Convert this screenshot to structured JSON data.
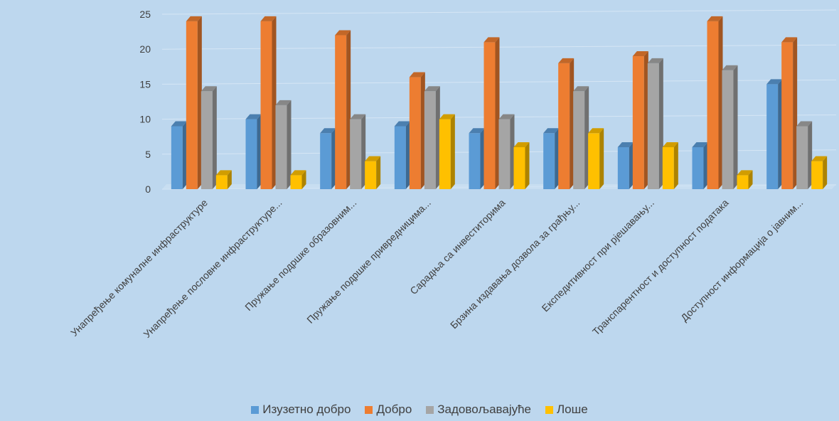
{
  "chart_data": {
    "type": "bar",
    "title": "",
    "xlabel": "",
    "ylabel": "",
    "ylim": [
      0,
      25
    ],
    "yticks": [
      0,
      5,
      10,
      15,
      20,
      25
    ],
    "grid": true,
    "legend_position": "bottom",
    "categories": [
      "Унапређење комуналне инфраструктуре",
      "Унапређење пословне инфраструктуре...",
      "Пружање подршке образовним...",
      "Пружање подршке привредницима...",
      "Сарадња са инвеститорима",
      "Брзина издавања дозвола за грађњу...",
      "Експедитивност при рјешавању...",
      "Транспарентност и доступност података",
      "Доступност информација о јавним..."
    ],
    "series": [
      {
        "name": "Изузетно добро",
        "color": "#5b9bd5",
        "values": [
          9,
          10,
          8,
          9,
          8,
          8,
          6,
          6,
          15
        ]
      },
      {
        "name": "Добро",
        "color": "#ed7d31",
        "values": [
          24,
          24,
          22,
          16,
          21,
          18,
          19,
          24,
          21
        ]
      },
      {
        "name": "Задовољавајуће",
        "color": "#a5a5a5",
        "values": [
          14,
          12,
          10,
          14,
          10,
          14,
          18,
          17,
          9
        ]
      },
      {
        "name": "Лоше",
        "color": "#ffc000",
        "values": [
          2,
          2,
          4,
          10,
          6,
          8,
          6,
          2,
          4
        ]
      }
    ]
  }
}
